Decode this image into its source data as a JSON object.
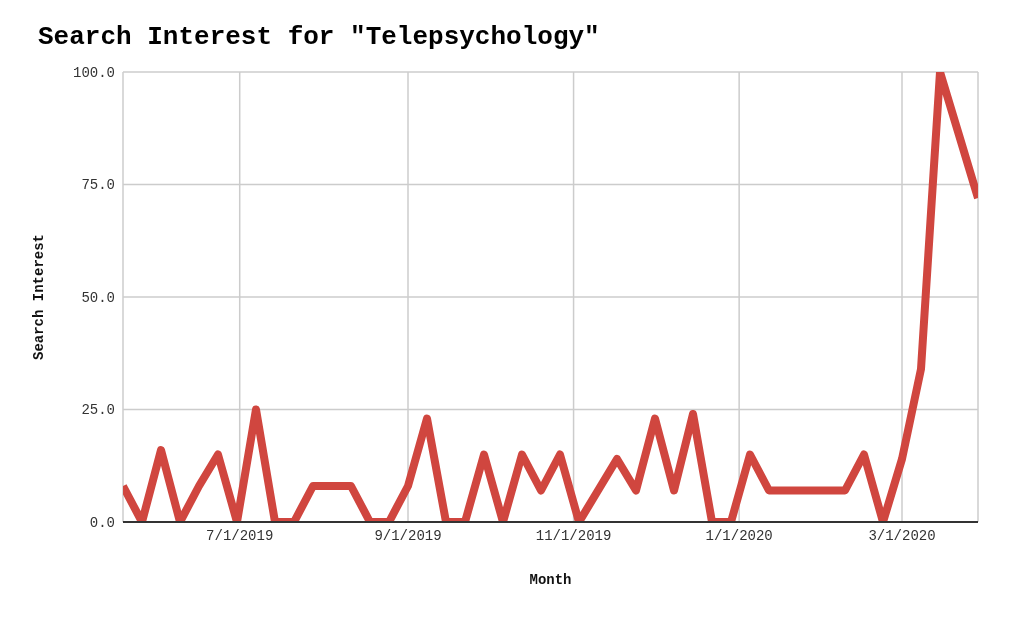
{
  "chart_data": {
    "type": "line",
    "title": "Search Interest for \"Telepsychology\"",
    "xlabel": "Month",
    "ylabel": "Search Interest",
    "x": [
      "2019-05-19",
      "2019-05-26",
      "2019-06-02",
      "2019-06-09",
      "2019-06-16",
      "2019-06-23",
      "2019-06-30",
      "2019-07-07",
      "2019-07-14",
      "2019-07-21",
      "2019-07-28",
      "2019-08-04",
      "2019-08-11",
      "2019-08-18",
      "2019-08-25",
      "2019-09-01",
      "2019-09-08",
      "2019-09-15",
      "2019-09-22",
      "2019-09-29",
      "2019-10-06",
      "2019-10-13",
      "2019-10-20",
      "2019-10-27",
      "2019-11-03",
      "2019-11-10",
      "2019-11-17",
      "2019-11-24",
      "2019-12-01",
      "2019-12-08",
      "2019-12-15",
      "2019-12-22",
      "2019-12-29",
      "2020-01-05",
      "2020-01-12",
      "2020-01-19",
      "2020-01-26",
      "2020-02-02",
      "2020-02-09",
      "2020-02-16",
      "2020-02-23",
      "2020-03-01",
      "2020-03-08",
      "2020-03-15",
      "2020-03-22",
      "2020-03-29"
    ],
    "series": [
      {
        "color": "#d0463f",
        "values": [
          8,
          0,
          16,
          0,
          8,
          15,
          0,
          25,
          0,
          0,
          8,
          8,
          8,
          0,
          0,
          8,
          23,
          0,
          0,
          15,
          0,
          15,
          7,
          15,
          0,
          7,
          14,
          7,
          23,
          7,
          24,
          0,
          0,
          15,
          7,
          7,
          7,
          7,
          7,
          15,
          0,
          14,
          34,
          100,
          86,
          72
        ]
      }
    ],
    "xlim": [
      "2019-05-19",
      "2020-03-29"
    ],
    "xticks": [
      {
        "value": "2019-07-01",
        "label": "7/1/2019"
      },
      {
        "value": "2019-09-01",
        "label": "9/1/2019"
      },
      {
        "value": "2019-11-01",
        "label": "11/1/2019"
      },
      {
        "value": "2020-01-01",
        "label": "1/1/2020"
      },
      {
        "value": "2020-03-01",
        "label": "3/1/2020"
      }
    ],
    "ylim": [
      0,
      100
    ],
    "yticks": [
      {
        "value": 0,
        "label": "0.0"
      },
      {
        "value": 25,
        "label": "25.0"
      },
      {
        "value": 50,
        "label": "50.0"
      },
      {
        "value": 75,
        "label": "75.0"
      },
      {
        "value": 100,
        "label": "100.0"
      }
    ],
    "grid": true,
    "legend": false,
    "marker": "none",
    "line_style": "solid"
  }
}
